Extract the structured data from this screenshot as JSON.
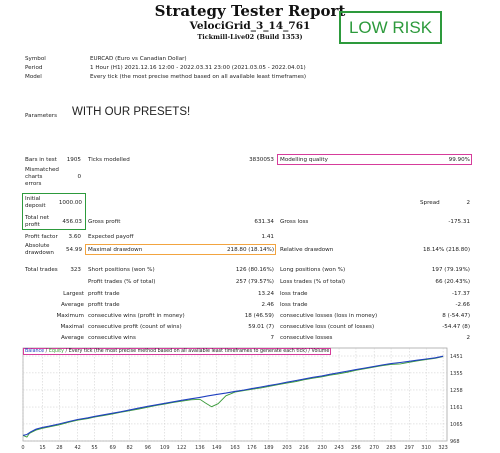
{
  "header": {
    "title": "Strategy Tester Report",
    "subtitle": "VelociGrid_3_14_761",
    "build": "Tickmill-Live02 (Build 1353)",
    "risk_label": "LOW RISK"
  },
  "info": {
    "symbol_label": "Symbol",
    "symbol_value": "EURCAD (Euro vs Canadian Dollar)",
    "period_label": "Period",
    "period_value": "1 Hour (H1) 2021.12.16 12:00 - 2022.03.31 23:00 (2021.03.05 - 2022.04.01)",
    "model_label": "Model",
    "model_value": "Every tick (the most precise method based on all available least timeframes)",
    "parameters_label": "Parameters",
    "parameters_value": "WITH OUR PRESETS!"
  },
  "stats": {
    "bars_label": "Bars in test",
    "bars_value": "1905",
    "ticks_label": "Ticks modelled",
    "ticks_value": "3830053",
    "quality_label": "Modelling quality",
    "quality_value": "99.90%",
    "mismatched_label": "Mismatched charts errors",
    "mismatched_value": "0",
    "initial_label": "Initial deposit",
    "initial_value": "1000.00",
    "spread_label": "Spread",
    "spread_value": "2",
    "net_label": "Total net profit",
    "net_value": "456.03",
    "gross_profit_label": "Gross profit",
    "gross_profit_value": "631.34",
    "gross_loss_label": "Gross loss",
    "gross_loss_value": "-175.31",
    "pf_label": "Profit factor",
    "pf_value": "3.60",
    "payoff_label": "Expected payoff",
    "payoff_value": "1.41",
    "abs_dd_label": "Absolute drawdown",
    "abs_dd_value": "54.99",
    "max_dd_label": "Maximal drawdown",
    "max_dd_value": "218.80 (18.14%)",
    "rel_dd_label": "Relative drawdown",
    "rel_dd_value": "18.14% (218.80)",
    "trades_label": "Total trades",
    "trades_value": "323",
    "short_label": "Short positions (won %)",
    "short_value": "126 (80.16%)",
    "long_label": "Long positions (won %)",
    "long_value": "197 (79.19%)",
    "profit_trades_label": "Profit trades (% of total)",
    "profit_trades_value": "257 (79.57%)",
    "loss_trades_label": "Loss trades (% of total)",
    "loss_trades_value": "66 (20.43%)",
    "largest_label": "Largest",
    "largest_profit_label": "profit trade",
    "largest_profit_value": "13.24",
    "largest_loss_label": "loss trade",
    "largest_loss_value": "-17.37",
    "average_label": "Average",
    "avg_profit_label": "profit trade",
    "avg_profit_value": "2.46",
    "avg_loss_label": "loss trade",
    "avg_loss_value": "-2.66",
    "maximum_label": "Maximum",
    "max_wins_label": "consecutive wins (profit in money)",
    "max_wins_value": "18 (46.59)",
    "max_losses_label": "consecutive losses (loss in money)",
    "max_losses_value": "8 (-54.47)",
    "maximal_label": "Maximal",
    "maximal_profit_label": "consecutive profit (count of wins)",
    "maximal_profit_value": "59.01 (7)",
    "maximal_loss_label": "consecutive loss (count of losses)",
    "maximal_loss_value": "-54.47 (8)",
    "average2_label": "Average",
    "avg_wins_label": "consecutive wins",
    "avg_wins_value": "7",
    "avg_losses_label": "consecutive losses",
    "avg_losses_value": "2"
  },
  "chart": {
    "legend_balance": "Balance",
    "legend_equity": "Equity",
    "legend_text": "Every tick (the most precise method based on all available least timeframes to generate each tick)",
    "legend_volume": "Volume",
    "balance_color": "#2040c0",
    "equity_color": "#3a9a3a"
  },
  "chart_data": {
    "type": "line",
    "x_ticks": [
      "0",
      "15",
      "28",
      "42",
      "55",
      "69",
      "82",
      "96",
      "109",
      "122",
      "136",
      "149",
      "163",
      "176",
      "189",
      "203",
      "216",
      "230",
      "243",
      "256",
      "270",
      "283",
      "297",
      "310",
      "323"
    ],
    "y_ticks": [
      "1451",
      "1355",
      "1258",
      "1161",
      "1065",
      "968"
    ],
    "ylim": [
      968,
      1451
    ],
    "xlim": [
      0,
      326
    ],
    "series": [
      {
        "name": "Balance",
        "x": [
          0,
          3,
          6,
          10,
          15,
          20,
          28,
          35,
          42,
          50,
          55,
          62,
          69,
          75,
          82,
          89,
          96,
          102,
          109,
          115,
          122,
          129,
          136,
          142,
          149,
          156,
          163,
          170,
          176,
          183,
          189,
          196,
          203,
          210,
          216,
          223,
          230,
          236,
          243,
          250,
          256,
          263,
          270,
          276,
          283,
          290,
          297,
          303,
          310,
          317,
          323
        ],
        "y": [
          1000,
          1005,
          1020,
          1035,
          1045,
          1052,
          1065,
          1078,
          1090,
          1100,
          1108,
          1117,
          1126,
          1134,
          1145,
          1155,
          1165,
          1173,
          1182,
          1190,
          1199,
          1208,
          1216,
          1224,
          1233,
          1240,
          1250,
          1258,
          1266,
          1275,
          1283,
          1292,
          1302,
          1312,
          1320,
          1330,
          1338,
          1347,
          1356,
          1366,
          1374,
          1383,
          1392,
          1400,
          1408,
          1414,
          1421,
          1427,
          1434,
          1441,
          1450
        ]
      },
      {
        "name": "Equity",
        "x": [
          0,
          3,
          5,
          10,
          15,
          20,
          28,
          35,
          42,
          50,
          55,
          62,
          69,
          75,
          82,
          89,
          96,
          102,
          109,
          115,
          122,
          129,
          136,
          140,
          145,
          150,
          156,
          163,
          170,
          176,
          183,
          189,
          196,
          203,
          210,
          216,
          223,
          230,
          236,
          243,
          250,
          256,
          263,
          270,
          276,
          283,
          290,
          297,
          303,
          310,
          317,
          323
        ],
        "y": [
          1000,
          990,
          1012,
          1030,
          1040,
          1048,
          1060,
          1074,
          1086,
          1096,
          1104,
          1113,
          1122,
          1131,
          1140,
          1150,
          1160,
          1170,
          1178,
          1186,
          1194,
          1202,
          1205,
          1185,
          1163,
          1180,
          1225,
          1246,
          1255,
          1262,
          1270,
          1278,
          1288,
          1297,
          1306,
          1316,
          1325,
          1333,
          1342,
          1350,
          1360,
          1370,
          1379,
          1388,
          1396,
          1403,
          1406,
          1415,
          1423,
          1431,
          1438,
          1448
        ]
      }
    ]
  }
}
